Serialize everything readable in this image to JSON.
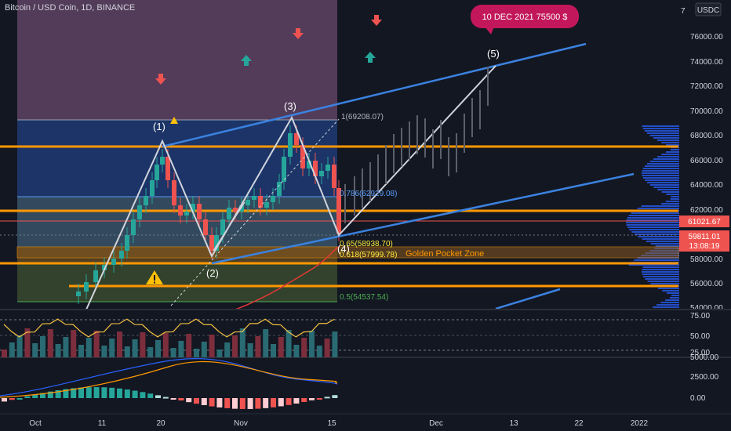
{
  "header": {
    "symbol_title": "Bitcoin / USD Coin, 1D, BINANCE",
    "currency_button": "USDC"
  },
  "colors": {
    "background": "#131722",
    "bull": "#26a69a",
    "bear": "#ef5350",
    "orange": "#ff9800",
    "blue_line": "#2f7fe0",
    "white_line": "#d1d4dc",
    "badge": "#c2185b"
  },
  "callout": {
    "text": "10 DEC 2021 75500 $"
  },
  "waves": [
    "(1)",
    "(2)",
    "(3)",
    "(4)",
    "(5)"
  ],
  "fib_levels": [
    {
      "label": "1(69208.07)",
      "color": "#b2b5be"
    },
    {
      "label": "0.786(62929.08)",
      "color": "#5b9cf6"
    },
    {
      "label": "0.65(58938.70)",
      "color": "#ffeb3b"
    },
    {
      "label": "0.618(57999.78)",
      "color": "#ffeb3b"
    },
    {
      "label": "0.5(54537.54)",
      "color": "#4caf50"
    }
  ],
  "golden_pocket": {
    "label": "Golden Pocket Zone"
  },
  "price_axis": {
    "ticks": [
      "76000.00",
      "74000.00",
      "72000.00",
      "70000.00",
      "68000.00",
      "66000.00",
      "64000.00",
      "62000.00",
      "58000.00",
      "56000.00",
      "54000.00"
    ],
    "top_partial": "7",
    "current_price": "61021.67",
    "last_price": "59811.01",
    "countdown": "13:08:19"
  },
  "rsi_axis": {
    "ticks": [
      "75.00",
      "50.00",
      "25.00"
    ]
  },
  "macd_axis": {
    "ticks": [
      "5000.00",
      "2500.00",
      "0.00"
    ]
  },
  "time_axis": {
    "ticks": [
      "Oct",
      "11",
      "20",
      "Nov",
      "15",
      "Dec",
      "13",
      "22",
      "2022"
    ]
  },
  "icons": [
    "arrow-down-icon",
    "arrow-up-icon",
    "warning-icon"
  ]
}
